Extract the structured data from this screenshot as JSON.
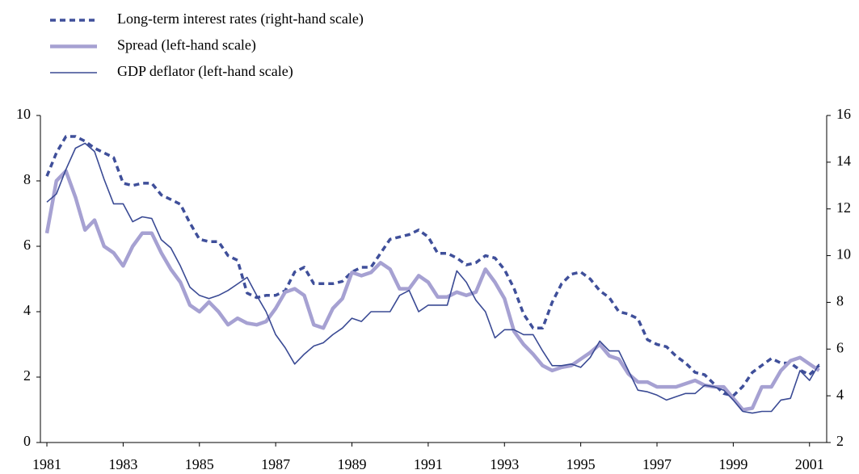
{
  "chart_data": {
    "type": "line",
    "x": [
      1981,
      1981.25,
      1981.5,
      1981.75,
      1982,
      1982.25,
      1982.5,
      1982.75,
      1983,
      1983.25,
      1983.5,
      1983.75,
      1984,
      1984.25,
      1984.5,
      1984.75,
      1985,
      1985.25,
      1985.5,
      1985.75,
      1986,
      1986.25,
      1986.5,
      1986.75,
      1987,
      1987.25,
      1987.5,
      1987.75,
      1988,
      1988.25,
      1988.5,
      1988.75,
      1989,
      1989.25,
      1989.5,
      1989.75,
      1990,
      1990.25,
      1990.5,
      1990.75,
      1991,
      1991.25,
      1991.5,
      1991.75,
      1992,
      1992.25,
      1992.5,
      1992.75,
      1993,
      1993.25,
      1993.5,
      1993.75,
      1994,
      1994.25,
      1994.5,
      1994.75,
      1995,
      1995.25,
      1995.5,
      1995.75,
      1996,
      1996.25,
      1996.5,
      1996.75,
      1997,
      1997.25,
      1997.5,
      1997.75,
      1998,
      1998.25,
      1998.5,
      1998.75,
      1999,
      1999.25,
      1999.5,
      1999.75,
      2000,
      2000.25,
      2000.5,
      2000.75,
      2001,
      2001.25
    ],
    "series": [
      {
        "name": "Long-term interest rates (right-hand scale)",
        "color": "#3f4f9a",
        "axis": "y2",
        "dash": "7,5",
        "width": 3.5,
        "values": [
          13.4,
          14.4,
          15.1,
          15.1,
          14.9,
          14.6,
          14.4,
          14.2,
          13.1,
          13.0,
          13.1,
          13.1,
          12.6,
          12.4,
          12.2,
          11.4,
          10.7,
          10.6,
          10.6,
          10.0,
          9.8,
          8.4,
          8.2,
          8.3,
          8.3,
          8.5,
          9.3,
          9.5,
          8.8,
          8.8,
          8.8,
          8.9,
          9.3,
          9.5,
          9.5,
          10.1,
          10.7,
          10.8,
          10.9,
          11.1,
          10.8,
          10.1,
          10.1,
          9.9,
          9.6,
          9.7,
          10.0,
          9.9,
          9.4,
          8.6,
          7.5,
          6.9,
          6.9,
          8.0,
          8.8,
          9.2,
          9.3,
          9.0,
          8.5,
          8.2,
          7.6,
          7.5,
          7.3,
          6.4,
          6.2,
          6.1,
          5.7,
          5.4,
          5.0,
          4.9,
          4.5,
          4.1,
          4.0,
          4.4,
          5.0,
          5.3,
          5.6,
          5.4,
          5.4,
          5.1,
          4.9,
          5.3
        ]
      },
      {
        "name": "Spread (left-hand scale)",
        "color": "#a6a1d2",
        "axis": "y",
        "dash": "none",
        "width": 4.5,
        "values": [
          6.4,
          8.0,
          8.3,
          7.5,
          6.5,
          6.8,
          6.0,
          5.8,
          5.4,
          6.0,
          6.4,
          6.4,
          5.8,
          5.3,
          4.9,
          4.2,
          4.0,
          4.3,
          4.0,
          3.6,
          3.8,
          3.65,
          3.6,
          3.7,
          4.1,
          4.6,
          4.7,
          4.5,
          3.6,
          3.5,
          4.1,
          4.4,
          5.2,
          5.1,
          5.2,
          5.5,
          5.3,
          4.7,
          4.7,
          5.1,
          4.9,
          4.45,
          4.45,
          4.6,
          4.5,
          4.6,
          5.3,
          4.9,
          4.4,
          3.4,
          3.0,
          2.7,
          2.35,
          2.2,
          2.3,
          2.35,
          2.55,
          2.75,
          3.0,
          2.65,
          2.55,
          2.1,
          1.85,
          1.85,
          1.7,
          1.7,
          1.7,
          1.8,
          1.9,
          1.75,
          1.7,
          1.7,
          1.35,
          1.0,
          1.05,
          1.7,
          1.7,
          2.2,
          2.5,
          2.6,
          2.4,
          2.2
        ]
      },
      {
        "name": "GDP deflator (left-hand scale)",
        "color": "#3a4a94",
        "axis": "y",
        "dash": "none",
        "width": 1.6,
        "values": [
          7.35,
          7.6,
          8.35,
          9.0,
          9.15,
          8.9,
          8.05,
          7.3,
          7.3,
          6.75,
          6.9,
          6.85,
          6.2,
          5.95,
          5.4,
          4.75,
          4.5,
          4.4,
          4.5,
          4.65,
          4.85,
          5.05,
          4.5,
          4.0,
          3.3,
          2.9,
          2.4,
          2.7,
          2.95,
          3.05,
          3.3,
          3.5,
          3.8,
          3.7,
          4.0,
          4.0,
          4.0,
          4.5,
          4.65,
          4.0,
          4.2,
          4.2,
          4.2,
          5.25,
          4.9,
          4.35,
          4.0,
          3.2,
          3.45,
          3.45,
          3.3,
          3.3,
          2.8,
          2.35,
          2.35,
          2.4,
          2.3,
          2.6,
          3.1,
          2.8,
          2.8,
          2.2,
          1.6,
          1.55,
          1.45,
          1.3,
          1.4,
          1.5,
          1.5,
          1.75,
          1.7,
          1.6,
          1.3,
          0.95,
          0.9,
          0.95,
          0.95,
          1.3,
          1.35,
          2.2,
          1.9,
          2.4
        ]
      }
    ],
    "xlim": [
      1980.83,
      2001.45
    ],
    "xticks": [
      1981,
      1983,
      1985,
      1987,
      1989,
      1991,
      1993,
      1995,
      1997,
      1999,
      2001
    ],
    "ylim": [
      0,
      10
    ],
    "yticks": [
      0,
      2,
      4,
      6,
      8,
      10
    ],
    "y2lim": [
      2,
      16
    ],
    "y2ticks": [
      2,
      4,
      6,
      8,
      10,
      12,
      14,
      16
    ],
    "grid": false
  }
}
